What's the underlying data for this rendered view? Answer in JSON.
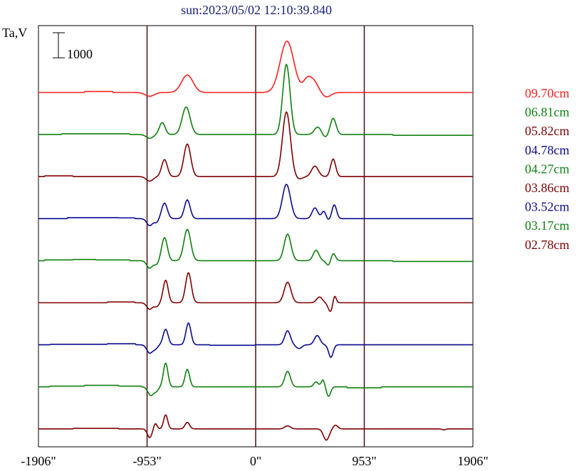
{
  "chart_data": {
    "type": "line",
    "title": "sun:2023/05/02 12:10:39.840",
    "title_color": "#1a237e",
    "ylabel": "Ta,V",
    "scale_bar_label": "1000",
    "scale_bar_value": 1000,
    "xlim": [
      -1906,
      1906
    ],
    "x_ticks": [
      {
        "value": -1906,
        "label": "-1906\""
      },
      {
        "value": -953,
        "label": "-953\""
      },
      {
        "value": 0,
        "label": "0\""
      },
      {
        "value": 953,
        "label": "953\""
      },
      {
        "value": 1906,
        "label": "1906\""
      }
    ],
    "vertical_markers": [
      -953,
      0,
      953
    ],
    "legend_position": "right",
    "series": [
      {
        "name": "09.70cm",
        "color": "#ff2020",
        "baseline": 0,
        "steps": [
          [
            -1906,
            0
          ],
          [
            -1500,
            40
          ],
          [
            -1250,
            0
          ]
        ],
        "peaks": [
          [
            -930,
            -150,
            40
          ],
          [
            -600,
            700,
            50
          ],
          [
            275,
            2050,
            60
          ],
          [
            450,
            450,
            35
          ],
          [
            510,
            420,
            40
          ],
          [
            620,
            -180,
            40
          ]
        ]
      },
      {
        "name": "06.81cm",
        "color": "#108010",
        "baseline": -1,
        "steps": [
          [
            -1906,
            0
          ],
          [
            -1700,
            30
          ],
          [
            -1100,
            0
          ],
          [
            1200,
            -30
          ]
        ],
        "peaks": [
          [
            -930,
            -150,
            30
          ],
          [
            -820,
            480,
            25
          ],
          [
            -610,
            1100,
            35
          ],
          [
            270,
            2800,
            32
          ],
          [
            545,
            300,
            30
          ],
          [
            680,
            650,
            25
          ],
          [
            610,
            -120,
            25
          ]
        ]
      },
      {
        "name": "05.82cm",
        "color": "#800000",
        "baseline": -2,
        "steps": [
          [
            -1906,
            0
          ],
          [
            -1850,
            30
          ],
          [
            -1600,
            0
          ]
        ],
        "peaks": [
          [
            -930,
            -180,
            30
          ],
          [
            -800,
            680,
            25
          ],
          [
            -600,
            1300,
            30
          ],
          [
            270,
            2580,
            35
          ],
          [
            520,
            420,
            30
          ],
          [
            680,
            700,
            22
          ],
          [
            380,
            -100,
            30
          ]
        ]
      },
      {
        "name": "04.78cm",
        "color": "#0a0a90",
        "baseline": -3,
        "steps": [
          [
            -1906,
            0
          ],
          [
            -1650,
            40
          ],
          [
            -1200,
            30
          ],
          [
            -1060,
            0
          ]
        ],
        "peaks": [
          [
            -930,
            -280,
            25
          ],
          [
            -800,
            620,
            25
          ],
          [
            -600,
            750,
            25
          ],
          [
            270,
            1370,
            35
          ],
          [
            520,
            430,
            25
          ],
          [
            600,
            320,
            20
          ],
          [
            690,
            550,
            20
          ],
          [
            -870,
            -150,
            20
          ],
          [
            630,
            -100,
            20
          ]
        ]
      },
      {
        "name": "04.27cm",
        "color": "#108010",
        "baseline": -4,
        "steps": [
          [
            -1906,
            0
          ],
          [
            -1850,
            30
          ],
          [
            -1600,
            50
          ],
          [
            -1400,
            30
          ],
          [
            -1100,
            0
          ],
          [
            1200,
            -30
          ]
        ],
        "peaks": [
          [
            -930,
            -300,
            25
          ],
          [
            -800,
            920,
            25
          ],
          [
            -600,
            1250,
            30
          ],
          [
            280,
            1060,
            30
          ],
          [
            530,
            420,
            25
          ],
          [
            680,
            300,
            20
          ],
          [
            640,
            -200,
            20
          ],
          [
            -870,
            -150,
            20
          ]
        ]
      },
      {
        "name": "03.86cm",
        "color": "#800000",
        "baseline": -5,
        "steps": [
          [
            -1906,
            0
          ],
          [
            -1300,
            30
          ],
          [
            -1060,
            0
          ]
        ],
        "peaks": [
          [
            -930,
            -260,
            25
          ],
          [
            -790,
            900,
            22
          ],
          [
            -590,
            1200,
            25
          ],
          [
            280,
            820,
            30
          ],
          [
            560,
            230,
            25
          ],
          [
            660,
            -380,
            22
          ],
          [
            690,
            380,
            15
          ],
          [
            -870,
            -150,
            20
          ]
        ]
      },
      {
        "name": "03.52cm",
        "color": "#0a0a90",
        "baseline": -6,
        "steps": [
          [
            -1906,
            0
          ],
          [
            -1800,
            20
          ],
          [
            -1300,
            40
          ],
          [
            -1050,
            0
          ],
          [
            -400,
            -20
          ],
          [
            0,
            0
          ]
        ],
        "peaks": [
          [
            -930,
            -330,
            25
          ],
          [
            -790,
            620,
            22
          ],
          [
            -590,
            870,
            22
          ],
          [
            280,
            560,
            25
          ],
          [
            540,
            370,
            25
          ],
          [
            660,
            -500,
            20
          ],
          [
            -880,
            -150,
            20
          ],
          [
            380,
            -150,
            25
          ]
        ]
      },
      {
        "name": "03.17cm",
        "color": "#108010",
        "baseline": -7,
        "steps": [
          [
            -1906,
            0
          ],
          [
            -1800,
            30
          ],
          [
            -1500,
            60
          ],
          [
            -1200,
            30
          ],
          [
            -1000,
            0
          ],
          [
            800,
            -40
          ],
          [
            1100,
            0
          ]
        ],
        "peaks": [
          [
            -920,
            -350,
            25
          ],
          [
            -790,
            950,
            20
          ],
          [
            -600,
            700,
            20
          ],
          [
            280,
            620,
            25
          ],
          [
            530,
            200,
            20
          ],
          [
            590,
            280,
            15
          ],
          [
            640,
            -380,
            18
          ],
          [
            -870,
            -150,
            18
          ]
        ]
      },
      {
        "name": "02.78cm",
        "color": "#800000",
        "baseline": -8,
        "steps": [
          [
            -1906,
            0
          ],
          [
            -1600,
            20
          ],
          [
            -1200,
            0
          ]
        ],
        "peaks": [
          [
            -930,
            -350,
            20
          ],
          [
            -880,
            220,
            15
          ],
          [
            -790,
            560,
            18
          ],
          [
            -600,
            260,
            20
          ],
          [
            280,
            120,
            25
          ],
          [
            620,
            -450,
            25
          ],
          [
            700,
            150,
            20
          ],
          [
            1650,
            -40,
            15
          ]
        ]
      }
    ]
  }
}
